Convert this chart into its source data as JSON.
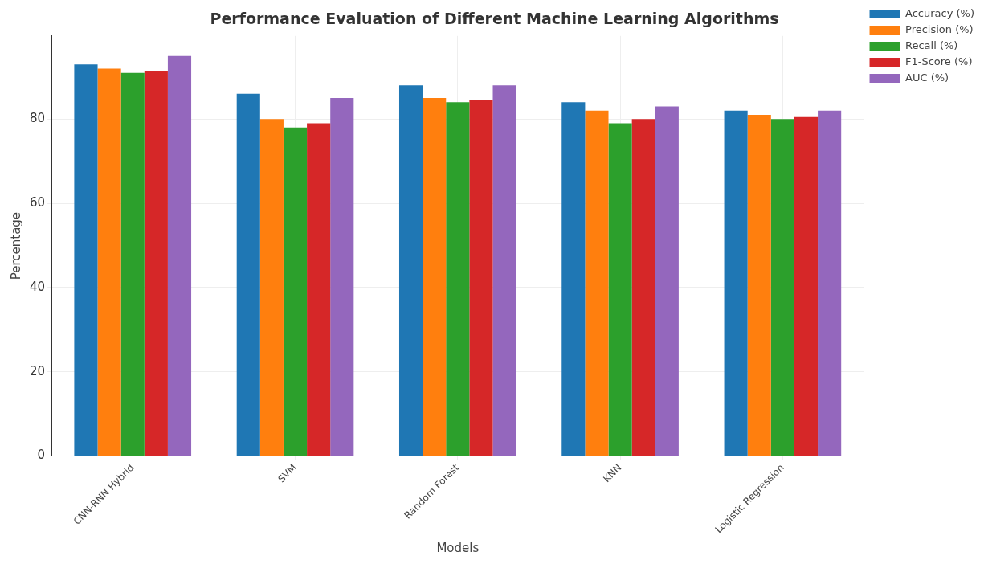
{
  "chart_data": {
    "type": "bar",
    "title": "Performance Evaluation of Different Machine Learning Algorithms",
    "xlabel": "Models",
    "ylabel": "Percentage",
    "categories": [
      "CNN-RNN Hybrid",
      "SVM",
      "Random Forest",
      "KNN",
      "Logistic Regression"
    ],
    "series": [
      {
        "name": "Accuracy (%)",
        "color": "#1f77b4",
        "values": [
          93,
          86,
          88,
          84,
          82
        ]
      },
      {
        "name": "Precision (%)",
        "color": "#ff7f0e",
        "values": [
          92,
          80,
          85,
          82,
          81
        ]
      },
      {
        "name": "Recall (%)",
        "color": "#2ca02c",
        "values": [
          91,
          78,
          84,
          79,
          80
        ]
      },
      {
        "name": "F1-Score (%)",
        "color": "#d62728",
        "values": [
          91.5,
          79,
          84.5,
          80,
          80.5
        ]
      },
      {
        "name": "AUC (%)",
        "color": "#9467bd",
        "values": [
          95,
          85,
          88,
          83,
          82
        ]
      }
    ],
    "ylim": [
      0,
      99.75
    ],
    "yticks": [
      0,
      20,
      40,
      60,
      80
    ],
    "grid": true,
    "legend": "top right"
  }
}
